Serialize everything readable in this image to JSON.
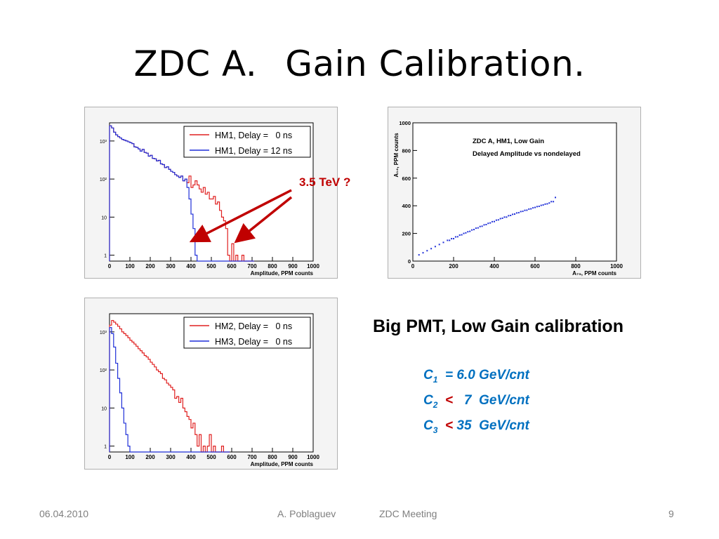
{
  "slide": {
    "title_part1": "ZDC  A.",
    "title_part2": "Gain Calibration.",
    "annotation": "3.5 TeV ?",
    "subtitle": "Big PMT,  Low Gain  calibration",
    "calibration": [
      {
        "symbol": "C",
        "sub": "1",
        "rel": "",
        "text": "= 6.0 GeV/cnt"
      },
      {
        "symbol": "C",
        "sub": "2",
        "rel": "<",
        "text": "   7  GeV/cnt"
      },
      {
        "symbol": "C",
        "sub": "3",
        "rel": "<",
        "text": " 35  GeV/cnt"
      }
    ],
    "footer": {
      "date": "06.04.2010",
      "author": "A. Poblaguev",
      "meeting": "ZDC Meeting",
      "page": "9"
    }
  },
  "colors": {
    "red": "#e02020",
    "blue": "#1f2fd8",
    "annotation": "#c00000",
    "calib": "#0070c0"
  },
  "chart_data": [
    {
      "type": "line",
      "chart_style": "histogram",
      "xlabel": "Amplitude, PPM counts",
      "xlim": [
        0,
        1000
      ],
      "x_ticks": [
        0,
        100,
        200,
        300,
        400,
        500,
        600,
        700,
        800,
        900,
        1000
      ],
      "yscale": "log",
      "ylim": [
        0.7,
        3000
      ],
      "y_ticks": [
        {
          "v": 1,
          "label": "1"
        },
        {
          "v": 10,
          "label": "10"
        },
        {
          "v": 100,
          "label": "10²"
        },
        {
          "v": 1000,
          "label": "10³"
        }
      ],
      "legend_position": "top-right",
      "series": [
        {
          "name": "HM1, Delay =   0 ns",
          "color": "red",
          "x": [
            0,
            10,
            20,
            30,
            40,
            50,
            60,
            70,
            80,
            90,
            100,
            110,
            120,
            130,
            140,
            150,
            160,
            170,
            180,
            190,
            200,
            210,
            220,
            230,
            240,
            250,
            260,
            270,
            280,
            290,
            300,
            310,
            320,
            330,
            340,
            350,
            360,
            370,
            380,
            390,
            400,
            410,
            420,
            430,
            440,
            450,
            460,
            470,
            480,
            490,
            500,
            510,
            520,
            530,
            540,
            550,
            560,
            570,
            580,
            590,
            600,
            610,
            620,
            630,
            640,
            650,
            660,
            670,
            680,
            690,
            700
          ],
          "y": [
            2500,
            2200,
            1700,
            1450,
            1300,
            1200,
            1100,
            1050,
            1000,
            950,
            900,
            850,
            700,
            680,
            620,
            540,
            600,
            500,
            480,
            400,
            420,
            350,
            340,
            300,
            310,
            250,
            240,
            200,
            210,
            180,
            160,
            150,
            130,
            120,
            110,
            120,
            90,
            100,
            80,
            120,
            60,
            70,
            90,
            70,
            55,
            45,
            60,
            40,
            45,
            30,
            30,
            35,
            22,
            25,
            15,
            10,
            8,
            5,
            1,
            0,
            2,
            0,
            1,
            0,
            0,
            1,
            0,
            0,
            0,
            0,
            0
          ]
        },
        {
          "name": "HM1, Delay = 12 ns",
          "color": "blue",
          "x": [
            0,
            10,
            20,
            30,
            40,
            50,
            60,
            70,
            80,
            90,
            100,
            110,
            120,
            130,
            140,
            150,
            160,
            170,
            180,
            190,
            200,
            210,
            220,
            230,
            240,
            250,
            260,
            270,
            280,
            290,
            300,
            310,
            320,
            330,
            340,
            350,
            360,
            370,
            380,
            390,
            400,
            410,
            420,
            430,
            440,
            450,
            460,
            470,
            480,
            490,
            500,
            510,
            520,
            530,
            540,
            550,
            560,
            570,
            580,
            590,
            600,
            610,
            620,
            630,
            640,
            650,
            660,
            670,
            680,
            690,
            700
          ],
          "y": [
            2500,
            2200,
            1700,
            1450,
            1300,
            1200,
            1100,
            1050,
            1000,
            950,
            900,
            850,
            700,
            680,
            620,
            540,
            600,
            500,
            480,
            400,
            420,
            350,
            340,
            300,
            310,
            250,
            240,
            200,
            210,
            180,
            160,
            150,
            130,
            120,
            110,
            120,
            90,
            100,
            60,
            30,
            12,
            5,
            1,
            0,
            0,
            0,
            0,
            0,
            0,
            0,
            0,
            0,
            0,
            0,
            0,
            0,
            0,
            0,
            0,
            0,
            0,
            0,
            0,
            0,
            0,
            0,
            0,
            0,
            0,
            0,
            0
          ]
        }
      ]
    },
    {
      "type": "scatter",
      "title": "ZDC A, HM1, Low Gain",
      "subtitle": "Delayed Amplitude vs nondelayed",
      "xlabel": "A₇₅, PPM counts",
      "ylabel": "A₁₄, PPM counts",
      "xlim": [
        0,
        1000
      ],
      "ylim": [
        0,
        1000
      ],
      "x_ticks": [
        0,
        200,
        400,
        600,
        800,
        1000
      ],
      "y_ticks": [
        0,
        200,
        400,
        600,
        800,
        1000
      ],
      "series": [
        {
          "color": "blue",
          "x": [
            30,
            50,
            70,
            90,
            110,
            130,
            150,
            170,
            190,
            210,
            230,
            250,
            270,
            290,
            310,
            330,
            350,
            370,
            390,
            410,
            430,
            450,
            470,
            490,
            510,
            530,
            550,
            570,
            590,
            610,
            630,
            650,
            670,
            690
          ],
          "y": [
            45,
            60,
            75,
            90,
            105,
            120,
            135,
            150,
            162,
            175,
            188,
            200,
            212,
            225,
            238,
            250,
            262,
            273,
            285,
            296,
            307,
            318,
            328,
            338,
            348,
            358,
            367,
            376,
            385,
            394,
            403,
            412,
            420,
            430
          ]
        },
        {
          "color": "blue",
          "name": "",
          "x": [
            180,
            200,
            220,
            240,
            260,
            280,
            300,
            320,
            340,
            360,
            380,
            400,
            420,
            440,
            460,
            480,
            500,
            520,
            540,
            560,
            580,
            600,
            620,
            640,
            660,
            680,
            700
          ],
          "y": [
            150,
            162,
            176,
            190,
            204,
            215,
            228,
            240,
            252,
            264,
            276,
            286,
            298,
            310,
            318,
            330,
            340,
            350,
            360,
            368,
            378,
            388,
            396,
            406,
            414,
            430,
            460
          ]
        }
      ]
    },
    {
      "type": "line",
      "chart_style": "histogram",
      "xlabel": "Amplitude, PPM counts",
      "xlim": [
        0,
        1000
      ],
      "x_ticks": [
        0,
        100,
        200,
        300,
        400,
        500,
        600,
        700,
        800,
        900,
        1000
      ],
      "yscale": "log",
      "ylim": [
        0.7,
        3000
      ],
      "y_ticks": [
        {
          "v": 1,
          "label": "1"
        },
        {
          "v": 10,
          "label": "10"
        },
        {
          "v": 100,
          "label": "10²"
        },
        {
          "v": 1000,
          "label": "10³"
        }
      ],
      "legend_position": "top-right",
      "series": [
        {
          "name": "HM2, Delay =   0 ns",
          "color": "red",
          "x": [
            0,
            10,
            20,
            30,
            40,
            50,
            60,
            70,
            80,
            90,
            100,
            110,
            120,
            130,
            140,
            150,
            160,
            170,
            180,
            190,
            200,
            210,
            220,
            230,
            240,
            250,
            260,
            270,
            280,
            290,
            300,
            310,
            320,
            330,
            340,
            350,
            360,
            370,
            380,
            390,
            400,
            410,
            420,
            430,
            440,
            450,
            460,
            470,
            480,
            490,
            500,
            510,
            520,
            530,
            540,
            550,
            560,
            570,
            580
          ],
          "y": [
            1500,
            2000,
            1800,
            1600,
            1400,
            1200,
            1000,
            900,
            800,
            700,
            600,
            540,
            480,
            420,
            360,
            320,
            280,
            240,
            220,
            190,
            160,
            140,
            120,
            100,
            90,
            80,
            60,
            55,
            45,
            40,
            35,
            30,
            18,
            20,
            14,
            18,
            10,
            8,
            6,
            5,
            3,
            4,
            2,
            1,
            2,
            0,
            1,
            0,
            1,
            2,
            0,
            1,
            0,
            0,
            0,
            1,
            0,
            0,
            0
          ]
        },
        {
          "name": "HM3, Delay =   0 ns",
          "color": "blue",
          "x": [
            0,
            10,
            20,
            30,
            40,
            50,
            60,
            70,
            80,
            90,
            100,
            110,
            120,
            130,
            140,
            150,
            160,
            170,
            180,
            190,
            200,
            210,
            220,
            230,
            240,
            250,
            260,
            270,
            280,
            290,
            300,
            310,
            320,
            330,
            340,
            350,
            360,
            370,
            380,
            390,
            400,
            410,
            420,
            430,
            440,
            450,
            460,
            470,
            480,
            490,
            500,
            510,
            520,
            530,
            540,
            550,
            560,
            570,
            580
          ],
          "y": [
            1300,
            900,
            400,
            150,
            60,
            25,
            10,
            4,
            2,
            1,
            0,
            0,
            0,
            0,
            0,
            0,
            0,
            0,
            0,
            0,
            0,
            0,
            0,
            0,
            0,
            0,
            0,
            0,
            0,
            0,
            0,
            0,
            0,
            0,
            0,
            0,
            0,
            0,
            0,
            0,
            0,
            0,
            0,
            0,
            0,
            0,
            0,
            0,
            0,
            0,
            0,
            0,
            0,
            0,
            0,
            0,
            0,
            0,
            0
          ]
        }
      ]
    }
  ]
}
